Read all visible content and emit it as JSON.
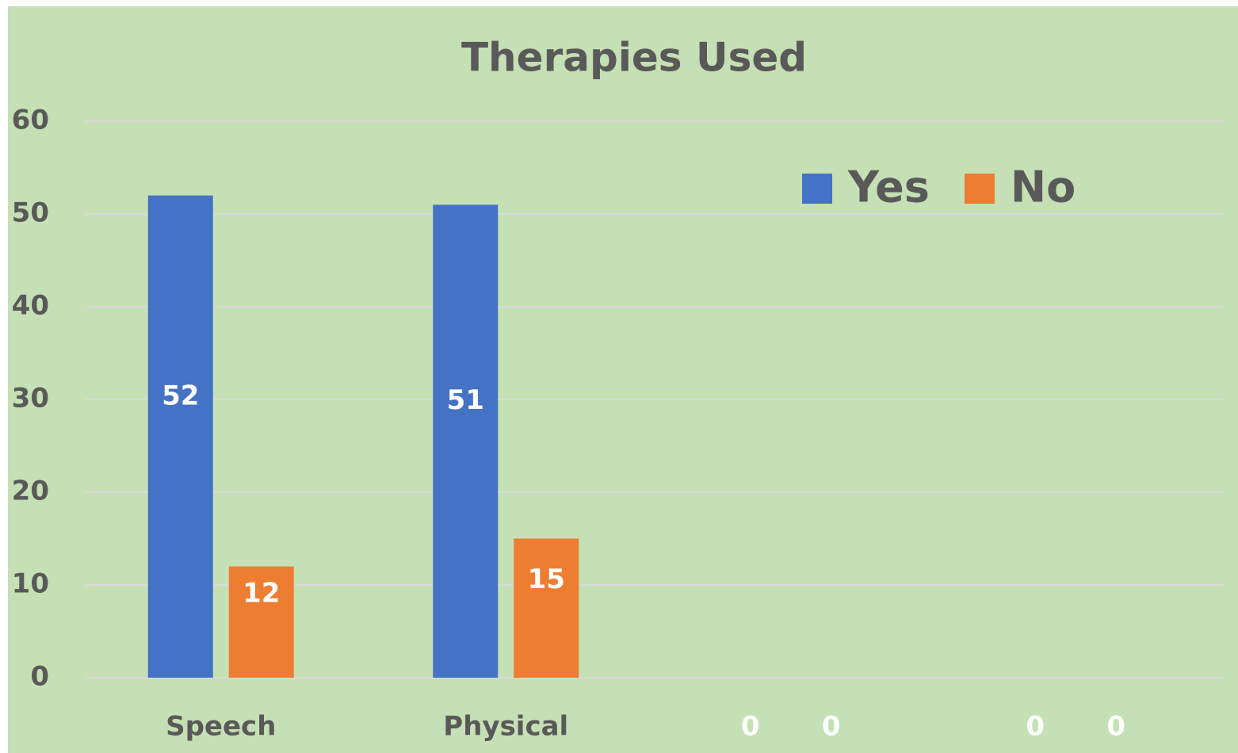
{
  "chart_data": {
    "type": "bar",
    "title": "Therapies Used",
    "categories": [
      "Speech",
      "Physical",
      null,
      null
    ],
    "series": [
      {
        "name": "Yes",
        "color": "#4472c4",
        "values": [
          52,
          51,
          0,
          0
        ]
      },
      {
        "name": "No",
        "color": "#ed7d31",
        "values": [
          12,
          15,
          0,
          0
        ]
      }
    ],
    "ylim": [
      0,
      60
    ],
    "yticks": [
      0,
      10,
      20,
      30,
      40,
      50,
      60
    ],
    "grid": true,
    "legend": "top-right"
  }
}
